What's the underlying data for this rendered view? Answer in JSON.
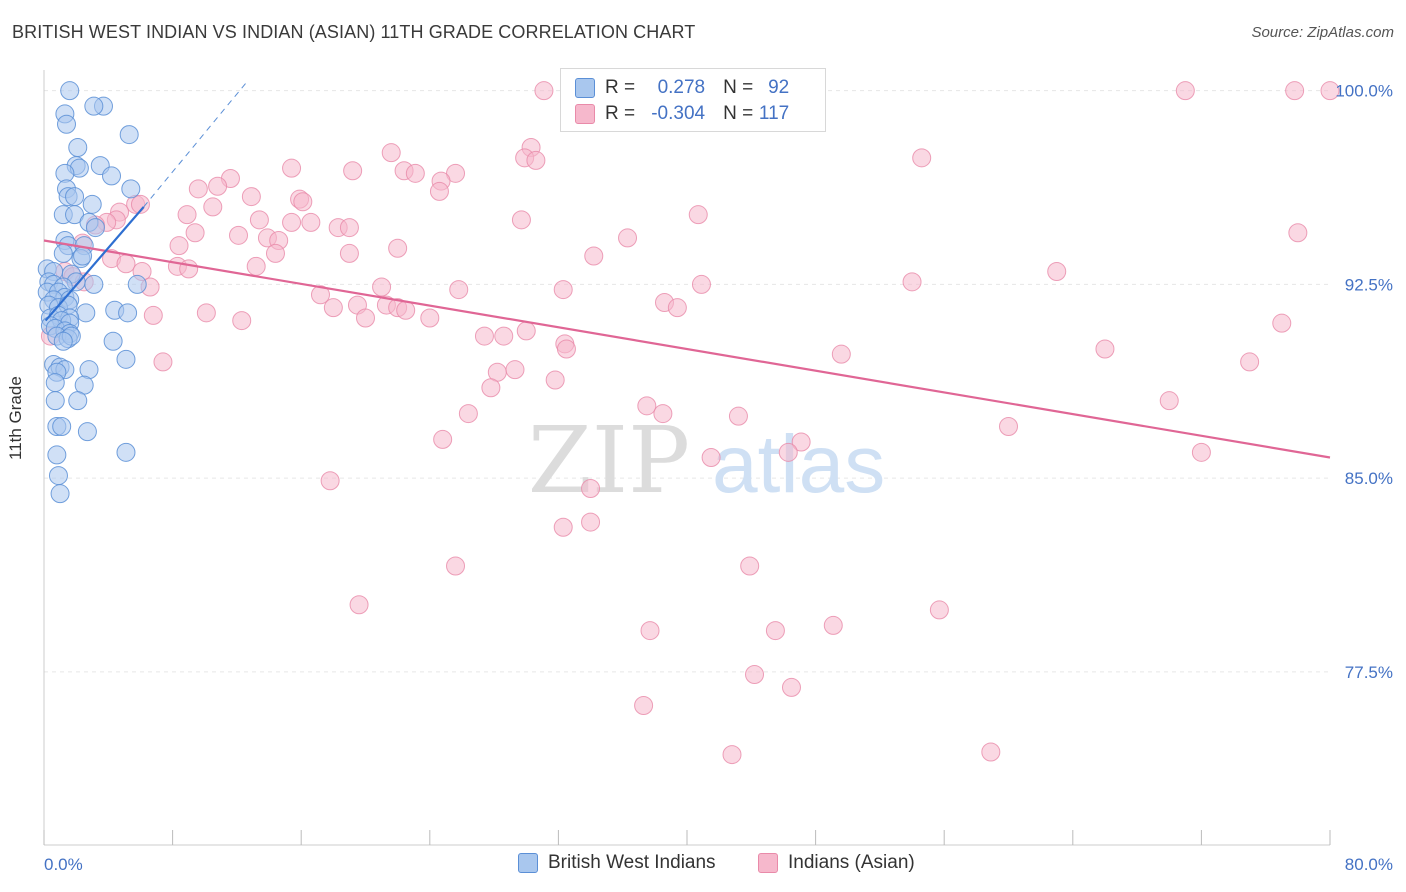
{
  "title": "BRITISH WEST INDIAN VS INDIAN (ASIAN) 11TH GRADE CORRELATION CHART",
  "source": "Source: ZipAtlas.com",
  "watermark": {
    "zip": "ZIP",
    "atlas": "atlas"
  },
  "colors": {
    "blue_fill": "#a9c7ee",
    "blue_stroke": "#5b8fd6",
    "blue_line": "#2e6fd1",
    "pink_fill": "#f6b8cc",
    "pink_stroke": "#e98aa9",
    "pink_line": "#e06695",
    "axis_text": "#4472c4",
    "grid": "#e6e6e6"
  },
  "legend": {
    "row1": {
      "r_label": "R = ",
      "r_value": "0.278",
      "n_label": "N = ",
      "n_value": "92"
    },
    "row2": {
      "r_label": "R = ",
      "r_value": "-0.304",
      "n_label": "N = ",
      "n_value": "117"
    }
  },
  "bottom_legend": {
    "series1": "British West Indians",
    "series2": "Indians (Asian)"
  },
  "chart_data": {
    "type": "scatter",
    "title": "BRITISH WEST INDIAN VS INDIAN (ASIAN) 11TH GRADE CORRELATION CHART",
    "xlabel": "",
    "ylabel": "11th Grade",
    "xlim": [
      0,
      80
    ],
    "ylim": [
      70.8,
      100.8
    ],
    "x_tick_labels": [
      "0.0%",
      "80.0%"
    ],
    "y_ticks": [
      100.0,
      92.5,
      85.0,
      77.5
    ],
    "y_tick_labels": [
      "100.0%",
      "92.5%",
      "85.0%",
      "77.5%"
    ],
    "grid": true,
    "legend_position": "top-center",
    "series": [
      {
        "name": "British West Indians",
        "R": 0.278,
        "N": 92,
        "trend": {
          "x0": 0.1,
          "y0": 91.1,
          "x1": 6.2,
          "y1": 95.5,
          "dashed_to": [
            12.7,
            100.4
          ]
        },
        "points": [
          [
            1.6,
            100.0
          ],
          [
            3.7,
            99.4
          ],
          [
            3.1,
            99.4
          ],
          [
            1.3,
            99.1
          ],
          [
            1.4,
            98.7
          ],
          [
            2.1,
            97.8
          ],
          [
            5.3,
            98.3
          ],
          [
            2.0,
            97.1
          ],
          [
            3.5,
            97.1
          ],
          [
            2.2,
            97.0
          ],
          [
            1.3,
            96.8
          ],
          [
            4.2,
            96.7
          ],
          [
            1.4,
            96.2
          ],
          [
            1.5,
            95.9
          ],
          [
            1.9,
            95.9
          ],
          [
            5.4,
            96.2
          ],
          [
            3.0,
            95.6
          ],
          [
            1.2,
            95.2
          ],
          [
            1.9,
            95.2
          ],
          [
            2.8,
            94.9
          ],
          [
            3.2,
            94.7
          ],
          [
            1.3,
            94.2
          ],
          [
            1.5,
            94.0
          ],
          [
            2.5,
            94.0
          ],
          [
            1.2,
            93.7
          ],
          [
            2.3,
            93.5
          ],
          [
            2.4,
            93.6
          ],
          [
            0.2,
            93.1
          ],
          [
            0.6,
            93.0
          ],
          [
            1.7,
            92.9
          ],
          [
            2.0,
            92.6
          ],
          [
            0.3,
            92.6
          ],
          [
            0.6,
            92.5
          ],
          [
            1.2,
            92.4
          ],
          [
            3.1,
            92.5
          ],
          [
            5.8,
            92.5
          ],
          [
            0.2,
            92.2
          ],
          [
            0.9,
            92.2
          ],
          [
            1.3,
            92.0
          ],
          [
            0.6,
            91.9
          ],
          [
            1.6,
            91.9
          ],
          [
            0.3,
            91.7
          ],
          [
            0.9,
            91.6
          ],
          [
            1.5,
            91.7
          ],
          [
            2.6,
            91.4
          ],
          [
            4.4,
            91.5
          ],
          [
            5.2,
            91.4
          ],
          [
            0.4,
            91.2
          ],
          [
            0.9,
            91.3
          ],
          [
            1.6,
            91.2
          ],
          [
            1.1,
            91.1
          ],
          [
            1.6,
            91.0
          ],
          [
            0.4,
            90.9
          ],
          [
            0.7,
            90.8
          ],
          [
            1.3,
            90.7
          ],
          [
            1.6,
            90.6
          ],
          [
            0.8,
            90.5
          ],
          [
            1.5,
            90.4
          ],
          [
            1.7,
            90.5
          ],
          [
            1.2,
            90.3
          ],
          [
            4.3,
            90.3
          ],
          [
            5.1,
            89.6
          ],
          [
            0.6,
            89.4
          ],
          [
            1.0,
            89.3
          ],
          [
            1.3,
            89.2
          ],
          [
            0.8,
            89.1
          ],
          [
            2.8,
            89.2
          ],
          [
            0.7,
            88.7
          ],
          [
            2.5,
            88.6
          ],
          [
            0.7,
            88.0
          ],
          [
            2.1,
            88.0
          ],
          [
            0.8,
            87.0
          ],
          [
            1.1,
            87.0
          ],
          [
            2.7,
            86.8
          ],
          [
            5.1,
            86.0
          ],
          [
            0.8,
            85.9
          ],
          [
            0.9,
            85.1
          ],
          [
            1.0,
            84.4
          ]
        ]
      },
      {
        "name": "Indians (Asian)",
        "R": -0.304,
        "N": 117,
        "trend": {
          "x0": 0.0,
          "y0": 94.2,
          "x1": 80.0,
          "y1": 85.8
        },
        "points": [
          [
            31.1,
            100.0
          ],
          [
            47.1,
            100.0
          ],
          [
            71.0,
            100.0
          ],
          [
            77.8,
            100.0
          ],
          [
            80.0,
            100.0
          ],
          [
            30.3,
            97.8
          ],
          [
            21.6,
            97.6
          ],
          [
            29.9,
            97.4
          ],
          [
            30.6,
            97.3
          ],
          [
            54.6,
            97.4
          ],
          [
            15.4,
            97.0
          ],
          [
            19.2,
            96.9
          ],
          [
            22.4,
            96.9
          ],
          [
            23.1,
            96.8
          ],
          [
            25.6,
            96.8
          ],
          [
            11.6,
            96.6
          ],
          [
            24.7,
            96.5
          ],
          [
            10.8,
            96.3
          ],
          [
            24.6,
            96.1
          ],
          [
            9.6,
            96.2
          ],
          [
            12.9,
            95.9
          ],
          [
            15.9,
            95.8
          ],
          [
            5.7,
            95.6
          ],
          [
            16.1,
            95.7
          ],
          [
            6.0,
            95.6
          ],
          [
            10.5,
            95.5
          ],
          [
            4.7,
            95.3
          ],
          [
            4.5,
            95.0
          ],
          [
            3.9,
            94.9
          ],
          [
            8.9,
            95.2
          ],
          [
            13.4,
            95.0
          ],
          [
            15.4,
            94.9
          ],
          [
            16.6,
            94.9
          ],
          [
            29.7,
            95.0
          ],
          [
            40.7,
            95.2
          ],
          [
            3.2,
            94.8
          ],
          [
            18.3,
            94.7
          ],
          [
            19.0,
            94.7
          ],
          [
            9.4,
            94.5
          ],
          [
            12.1,
            94.4
          ],
          [
            13.9,
            94.3
          ],
          [
            14.6,
            94.2
          ],
          [
            36.3,
            94.3
          ],
          [
            2.4,
            94.1
          ],
          [
            8.4,
            94.0
          ],
          [
            22.0,
            93.9
          ],
          [
            14.4,
            93.7
          ],
          [
            19.0,
            93.7
          ],
          [
            34.2,
            93.6
          ],
          [
            4.2,
            93.5
          ],
          [
            5.1,
            93.3
          ],
          [
            8.3,
            93.2
          ],
          [
            9.0,
            93.1
          ],
          [
            13.2,
            93.2
          ],
          [
            6.1,
            93.0
          ],
          [
            1.3,
            93.0
          ],
          [
            1.8,
            92.8
          ],
          [
            2.5,
            92.6
          ],
          [
            6.6,
            92.4
          ],
          [
            21.0,
            92.4
          ],
          [
            25.8,
            92.3
          ],
          [
            32.3,
            92.3
          ],
          [
            40.9,
            92.5
          ],
          [
            17.2,
            92.1
          ],
          [
            18.0,
            91.6
          ],
          [
            19.5,
            91.7
          ],
          [
            21.3,
            91.7
          ],
          [
            22.0,
            91.6
          ],
          [
            20.0,
            91.2
          ],
          [
            24.0,
            91.2
          ],
          [
            22.5,
            91.5
          ],
          [
            6.8,
            91.3
          ],
          [
            10.1,
            91.4
          ],
          [
            12.3,
            91.1
          ],
          [
            38.6,
            91.8
          ],
          [
            39.4,
            91.6
          ],
          [
            30.0,
            90.7
          ],
          [
            28.6,
            90.5
          ],
          [
            27.4,
            90.5
          ],
          [
            32.4,
            90.2
          ],
          [
            0.4,
            90.5
          ],
          [
            32.5,
            90.0
          ],
          [
            49.6,
            89.8
          ],
          [
            7.4,
            89.5
          ],
          [
            28.2,
            89.1
          ],
          [
            29.3,
            89.2
          ],
          [
            31.8,
            88.8
          ],
          [
            27.8,
            88.5
          ],
          [
            37.5,
            87.8
          ],
          [
            38.5,
            87.5
          ],
          [
            26.4,
            87.5
          ],
          [
            43.2,
            87.4
          ],
          [
            24.8,
            86.5
          ],
          [
            47.1,
            86.4
          ],
          [
            46.3,
            86.0
          ],
          [
            41.5,
            85.8
          ],
          [
            17.8,
            84.9
          ],
          [
            34.0,
            84.6
          ],
          [
            32.3,
            83.1
          ],
          [
            34.0,
            83.3
          ],
          [
            25.6,
            81.6
          ],
          [
            43.9,
            81.6
          ],
          [
            19.6,
            80.1
          ],
          [
            55.7,
            79.9
          ],
          [
            49.1,
            79.3
          ],
          [
            37.7,
            79.1
          ],
          [
            45.5,
            79.1
          ],
          [
            44.2,
            77.4
          ],
          [
            46.5,
            76.9
          ],
          [
            37.3,
            76.2
          ],
          [
            42.8,
            74.3
          ],
          [
            58.9,
            74.4
          ],
          [
            54.0,
            92.6
          ],
          [
            63.0,
            93.0
          ],
          [
            78.0,
            94.5
          ],
          [
            77.0,
            91.0
          ],
          [
            70.0,
            88.0
          ],
          [
            66.0,
            90.0
          ],
          [
            60.0,
            87.0
          ],
          [
            72.0,
            86.0
          ],
          [
            75.0,
            89.5
          ]
        ]
      }
    ]
  }
}
